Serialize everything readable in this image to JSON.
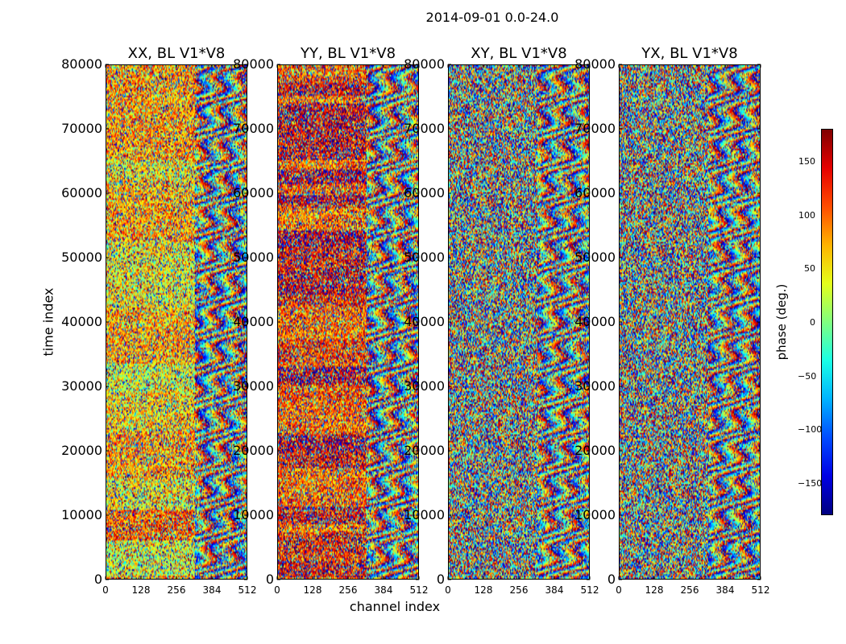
{
  "suptitle": "2014-09-01 0.0-24.0",
  "chart_data": {
    "type": "heatmap",
    "colormap": "jet",
    "panels": [
      {
        "title": "XX, BL V1*V8"
      },
      {
        "title": "YY, BL V1*V8"
      },
      {
        "title": "XY, BL V1*V8"
      },
      {
        "title": "YX, BL V1*V8"
      }
    ],
    "xlabel": "channel index",
    "ylabel": "time index",
    "xlim": [
      0,
      512
    ],
    "ylim": [
      0,
      80000
    ],
    "xticks": [
      "0",
      "128",
      "256",
      "384",
      "512"
    ],
    "yticks": [
      "0",
      "10000",
      "20000",
      "30000",
      "40000",
      "50000",
      "60000",
      "70000",
      "80000"
    ],
    "colorbar": {
      "label": "phase (deg.)",
      "range": [
        -180,
        180
      ],
      "ticks": [
        "150",
        "100",
        "50",
        "0",
        "−50",
        "−100",
        "−150"
      ]
    }
  }
}
